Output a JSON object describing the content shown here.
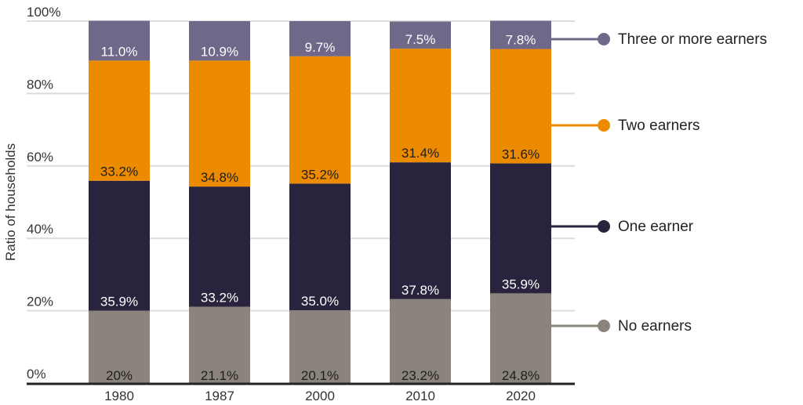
{
  "chart_data": {
    "type": "bar",
    "stacked": true,
    "title": "",
    "xlabel": "",
    "ylabel": "Ratio of households",
    "ylim": [
      0,
      100
    ],
    "yticks": [
      "0%",
      "20%",
      "40%",
      "60%",
      "80%",
      "100%"
    ],
    "grid": true,
    "legend_placement": "right",
    "categories": [
      "1980",
      "1987",
      "2000",
      "2010",
      "2020"
    ],
    "series": [
      {
        "name": "No earners",
        "color": "#8b847c",
        "label_color": "#1e1e1e",
        "values": [
          20,
          21.1,
          20.1,
          23.2,
          24.8
        ],
        "labels": [
          "20%",
          "21.1%",
          "20.1%",
          "23.2%",
          "24.8%"
        ]
      },
      {
        "name": "One earner",
        "color": "#29233d",
        "label_color": "#ffffff",
        "values": [
          35.9,
          33.2,
          35.0,
          37.8,
          35.9
        ],
        "labels": [
          "35.9%",
          "33.2%",
          "35.0%",
          "37.8%",
          "35.9%"
        ]
      },
      {
        "name": "Two earners",
        "color": "#ec8a00",
        "label_color": "#1e1e1e",
        "values": [
          33.2,
          34.8,
          35.2,
          31.4,
          31.6
        ],
        "labels": [
          "33.2%",
          "34.8%",
          "35.2%",
          "31.4%",
          "31.6%"
        ]
      },
      {
        "name": "Three or more earners",
        "color": "#6f6888",
        "label_color": "#ffffff",
        "values": [
          11.0,
          10.9,
          9.7,
          7.5,
          7.8
        ],
        "labels": [
          "11.0%",
          "10.9%",
          "9.7%",
          "7.5%",
          "7.8%"
        ]
      }
    ]
  }
}
